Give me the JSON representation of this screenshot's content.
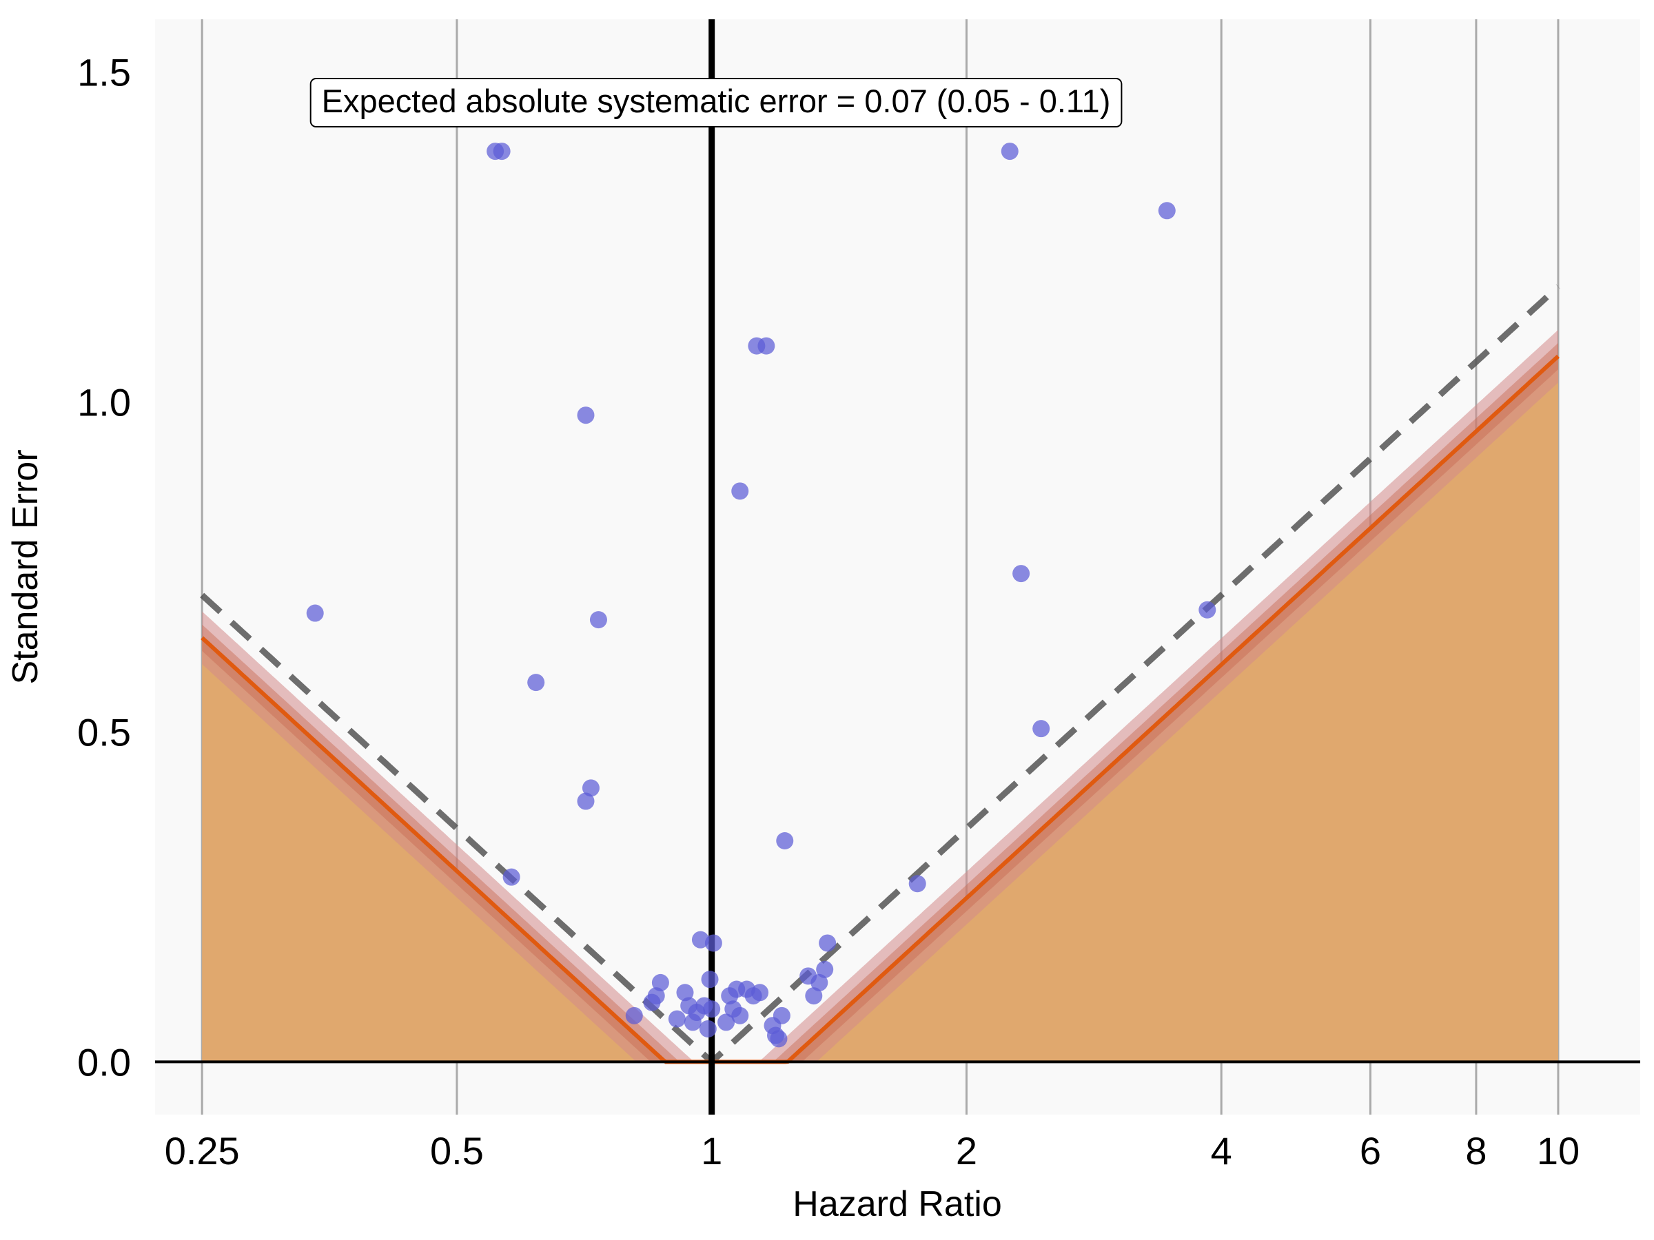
{
  "chart_data": {
    "type": "scatter",
    "title": "",
    "xlabel": "Hazard Ratio",
    "ylabel": "Standard Error",
    "x_scale": "log",
    "xlim": [
      0.22,
      12.5
    ],
    "ylim": [
      -0.08,
      1.58
    ],
    "x_ticks": [
      {
        "value": 0.25,
        "label": "0.25"
      },
      {
        "value": 0.5,
        "label": "0.5"
      },
      {
        "value": 1,
        "label": "1"
      },
      {
        "value": 2,
        "label": "2"
      },
      {
        "value": 4,
        "label": "4"
      },
      {
        "value": 6,
        "label": "6"
      },
      {
        "value": 8,
        "label": "8"
      },
      {
        "value": 10,
        "label": "10"
      }
    ],
    "y_ticks": [
      {
        "value": 0.0,
        "label": "0.0"
      },
      {
        "value": 0.5,
        "label": "0.5"
      },
      {
        "value": 1.0,
        "label": "1.0"
      },
      {
        "value": 1.5,
        "label": "1.5"
      }
    ],
    "grid": "vertical",
    "annotation": "Expected absolute systematic error = 0.07 (0.05 - 0.11)",
    "calibration": {
      "mean": 0.04,
      "sd": 0.085,
      "sd_ci": [
        0.045,
        0.125
      ],
      "xrange": [
        0.25,
        10
      ]
    },
    "points": [
      {
        "x": 0.555,
        "y": 1.38
      },
      {
        "x": 0.565,
        "y": 1.38
      },
      {
        "x": 0.71,
        "y": 0.98
      },
      {
        "x": 0.735,
        "y": 0.67
      },
      {
        "x": 0.62,
        "y": 0.575
      },
      {
        "x": 0.72,
        "y": 0.415
      },
      {
        "x": 0.71,
        "y": 0.395
      },
      {
        "x": 0.34,
        "y": 0.68
      },
      {
        "x": 0.58,
        "y": 0.28
      },
      {
        "x": 0.81,
        "y": 0.07
      },
      {
        "x": 0.85,
        "y": 0.09
      },
      {
        "x": 0.86,
        "y": 0.1
      },
      {
        "x": 0.87,
        "y": 0.12
      },
      {
        "x": 0.91,
        "y": 0.065
      },
      {
        "x": 0.93,
        "y": 0.105
      },
      {
        "x": 0.94,
        "y": 0.085
      },
      {
        "x": 0.95,
        "y": 0.06
      },
      {
        "x": 0.96,
        "y": 0.075
      },
      {
        "x": 0.97,
        "y": 0.185
      },
      {
        "x": 0.98,
        "y": 0.085
      },
      {
        "x": 0.99,
        "y": 0.05
      },
      {
        "x": 0.995,
        "y": 0.125
      },
      {
        "x": 1.0,
        "y": 0.08
      },
      {
        "x": 1.005,
        "y": 0.18
      },
      {
        "x": 1.04,
        "y": 0.06
      },
      {
        "x": 1.05,
        "y": 0.1
      },
      {
        "x": 1.06,
        "y": 0.08
      },
      {
        "x": 1.07,
        "y": 0.11
      },
      {
        "x": 1.08,
        "y": 0.07
      },
      {
        "x": 1.1,
        "y": 0.11
      },
      {
        "x": 1.12,
        "y": 0.1
      },
      {
        "x": 1.14,
        "y": 0.105
      },
      {
        "x": 1.08,
        "y": 0.865
      },
      {
        "x": 1.13,
        "y": 1.085
      },
      {
        "x": 1.16,
        "y": 1.085
      },
      {
        "x": 1.18,
        "y": 0.055
      },
      {
        "x": 1.19,
        "y": 0.04
      },
      {
        "x": 1.2,
        "y": 0.035
      },
      {
        "x": 1.21,
        "y": 0.07
      },
      {
        "x": 1.22,
        "y": 0.335
      },
      {
        "x": 1.3,
        "y": 0.13
      },
      {
        "x": 1.32,
        "y": 0.1
      },
      {
        "x": 1.34,
        "y": 0.12
      },
      {
        "x": 1.36,
        "y": 0.14
      },
      {
        "x": 1.37,
        "y": 0.18
      },
      {
        "x": 1.75,
        "y": 0.27
      },
      {
        "x": 2.25,
        "y": 1.38
      },
      {
        "x": 2.32,
        "y": 0.74
      },
      {
        "x": 2.45,
        "y": 0.505
      },
      {
        "x": 3.45,
        "y": 1.29
      },
      {
        "x": 3.85,
        "y": 0.685
      }
    ],
    "colors": {
      "background": "#f9f9f9",
      "grid": "#aaaaaa",
      "fill": "#e0a86e",
      "band_outer": "#d38a8a",
      "band_inner": "#c86a52",
      "line": "#e05a10",
      "dashed": "#555555",
      "point": "#5b5bd6"
    }
  }
}
